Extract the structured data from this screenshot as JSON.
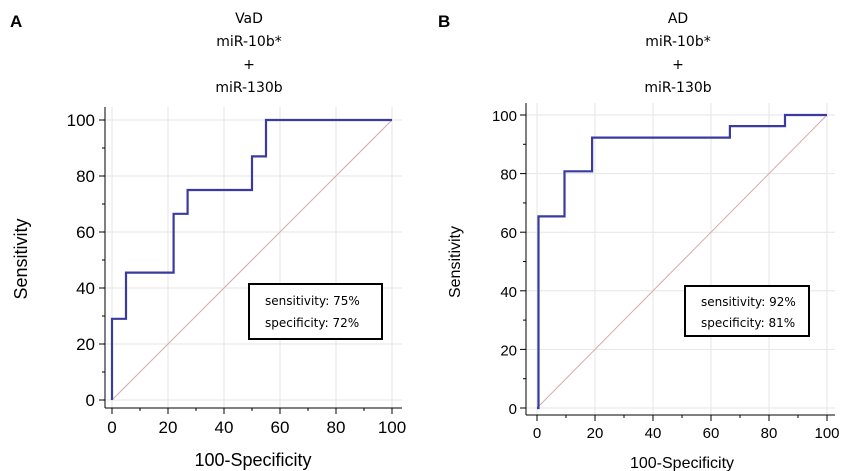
{
  "chart_data": [
    {
      "panel": "A",
      "type": "line",
      "title": [
        "VaD",
        "miR-10b*",
        "+",
        "miR-130b"
      ],
      "xlabel": "100-Specificity",
      "ylabel": "Sensitivity",
      "xlim": [
        0,
        100
      ],
      "ylim": [
        0,
        100
      ],
      "xticks": [
        0,
        20,
        40,
        60,
        80,
        100
      ],
      "yticks": [
        0,
        20,
        40,
        60,
        80,
        100
      ],
      "grid": true,
      "series": [
        {
          "color": "#3a3aa0",
          "x": [
            0,
            0,
            5,
            5,
            22,
            22,
            27,
            27,
            50,
            50,
            55,
            55,
            100
          ],
          "y": [
            0,
            29,
            29,
            45.5,
            45.5,
            66.5,
            66.5,
            75,
            75,
            87,
            87,
            100,
            100
          ]
        },
        {
          "color": "#d7a9ad",
          "x": [
            0,
            100
          ],
          "y": [
            0,
            100
          ]
        }
      ],
      "annotation": [
        "sensitivity: 75%",
        "specificity: 72%"
      ]
    },
    {
      "panel": "B",
      "type": "line",
      "title": [
        "AD",
        "miR-10b*",
        "+",
        "miR-130b"
      ],
      "xlabel": "100-Specificity",
      "ylabel": "Sensitivity",
      "xlim": [
        0,
        100
      ],
      "ylim": [
        0,
        100
      ],
      "xticks": [
        0,
        20,
        40,
        60,
        80,
        100
      ],
      "yticks": [
        0,
        20,
        40,
        60,
        80,
        100
      ],
      "grid": true,
      "series": [
        {
          "color": "#3a3aa0",
          "x": [
            0,
            0,
            0.5,
            0.5,
            9.5,
            9.5,
            19,
            19,
            66.5,
            66.5,
            85.5,
            85.5,
            100
          ],
          "y": [
            0,
            0,
            0,
            65.4,
            65.4,
            80.8,
            80.8,
            92.3,
            92.3,
            96.2,
            96.2,
            100,
            100
          ]
        },
        {
          "color": "#d7a9ad",
          "x": [
            0,
            100
          ],
          "y": [
            0,
            100
          ]
        }
      ],
      "annotation": [
        "sensitivity: 92%",
        "specificity: 81%"
      ]
    }
  ]
}
